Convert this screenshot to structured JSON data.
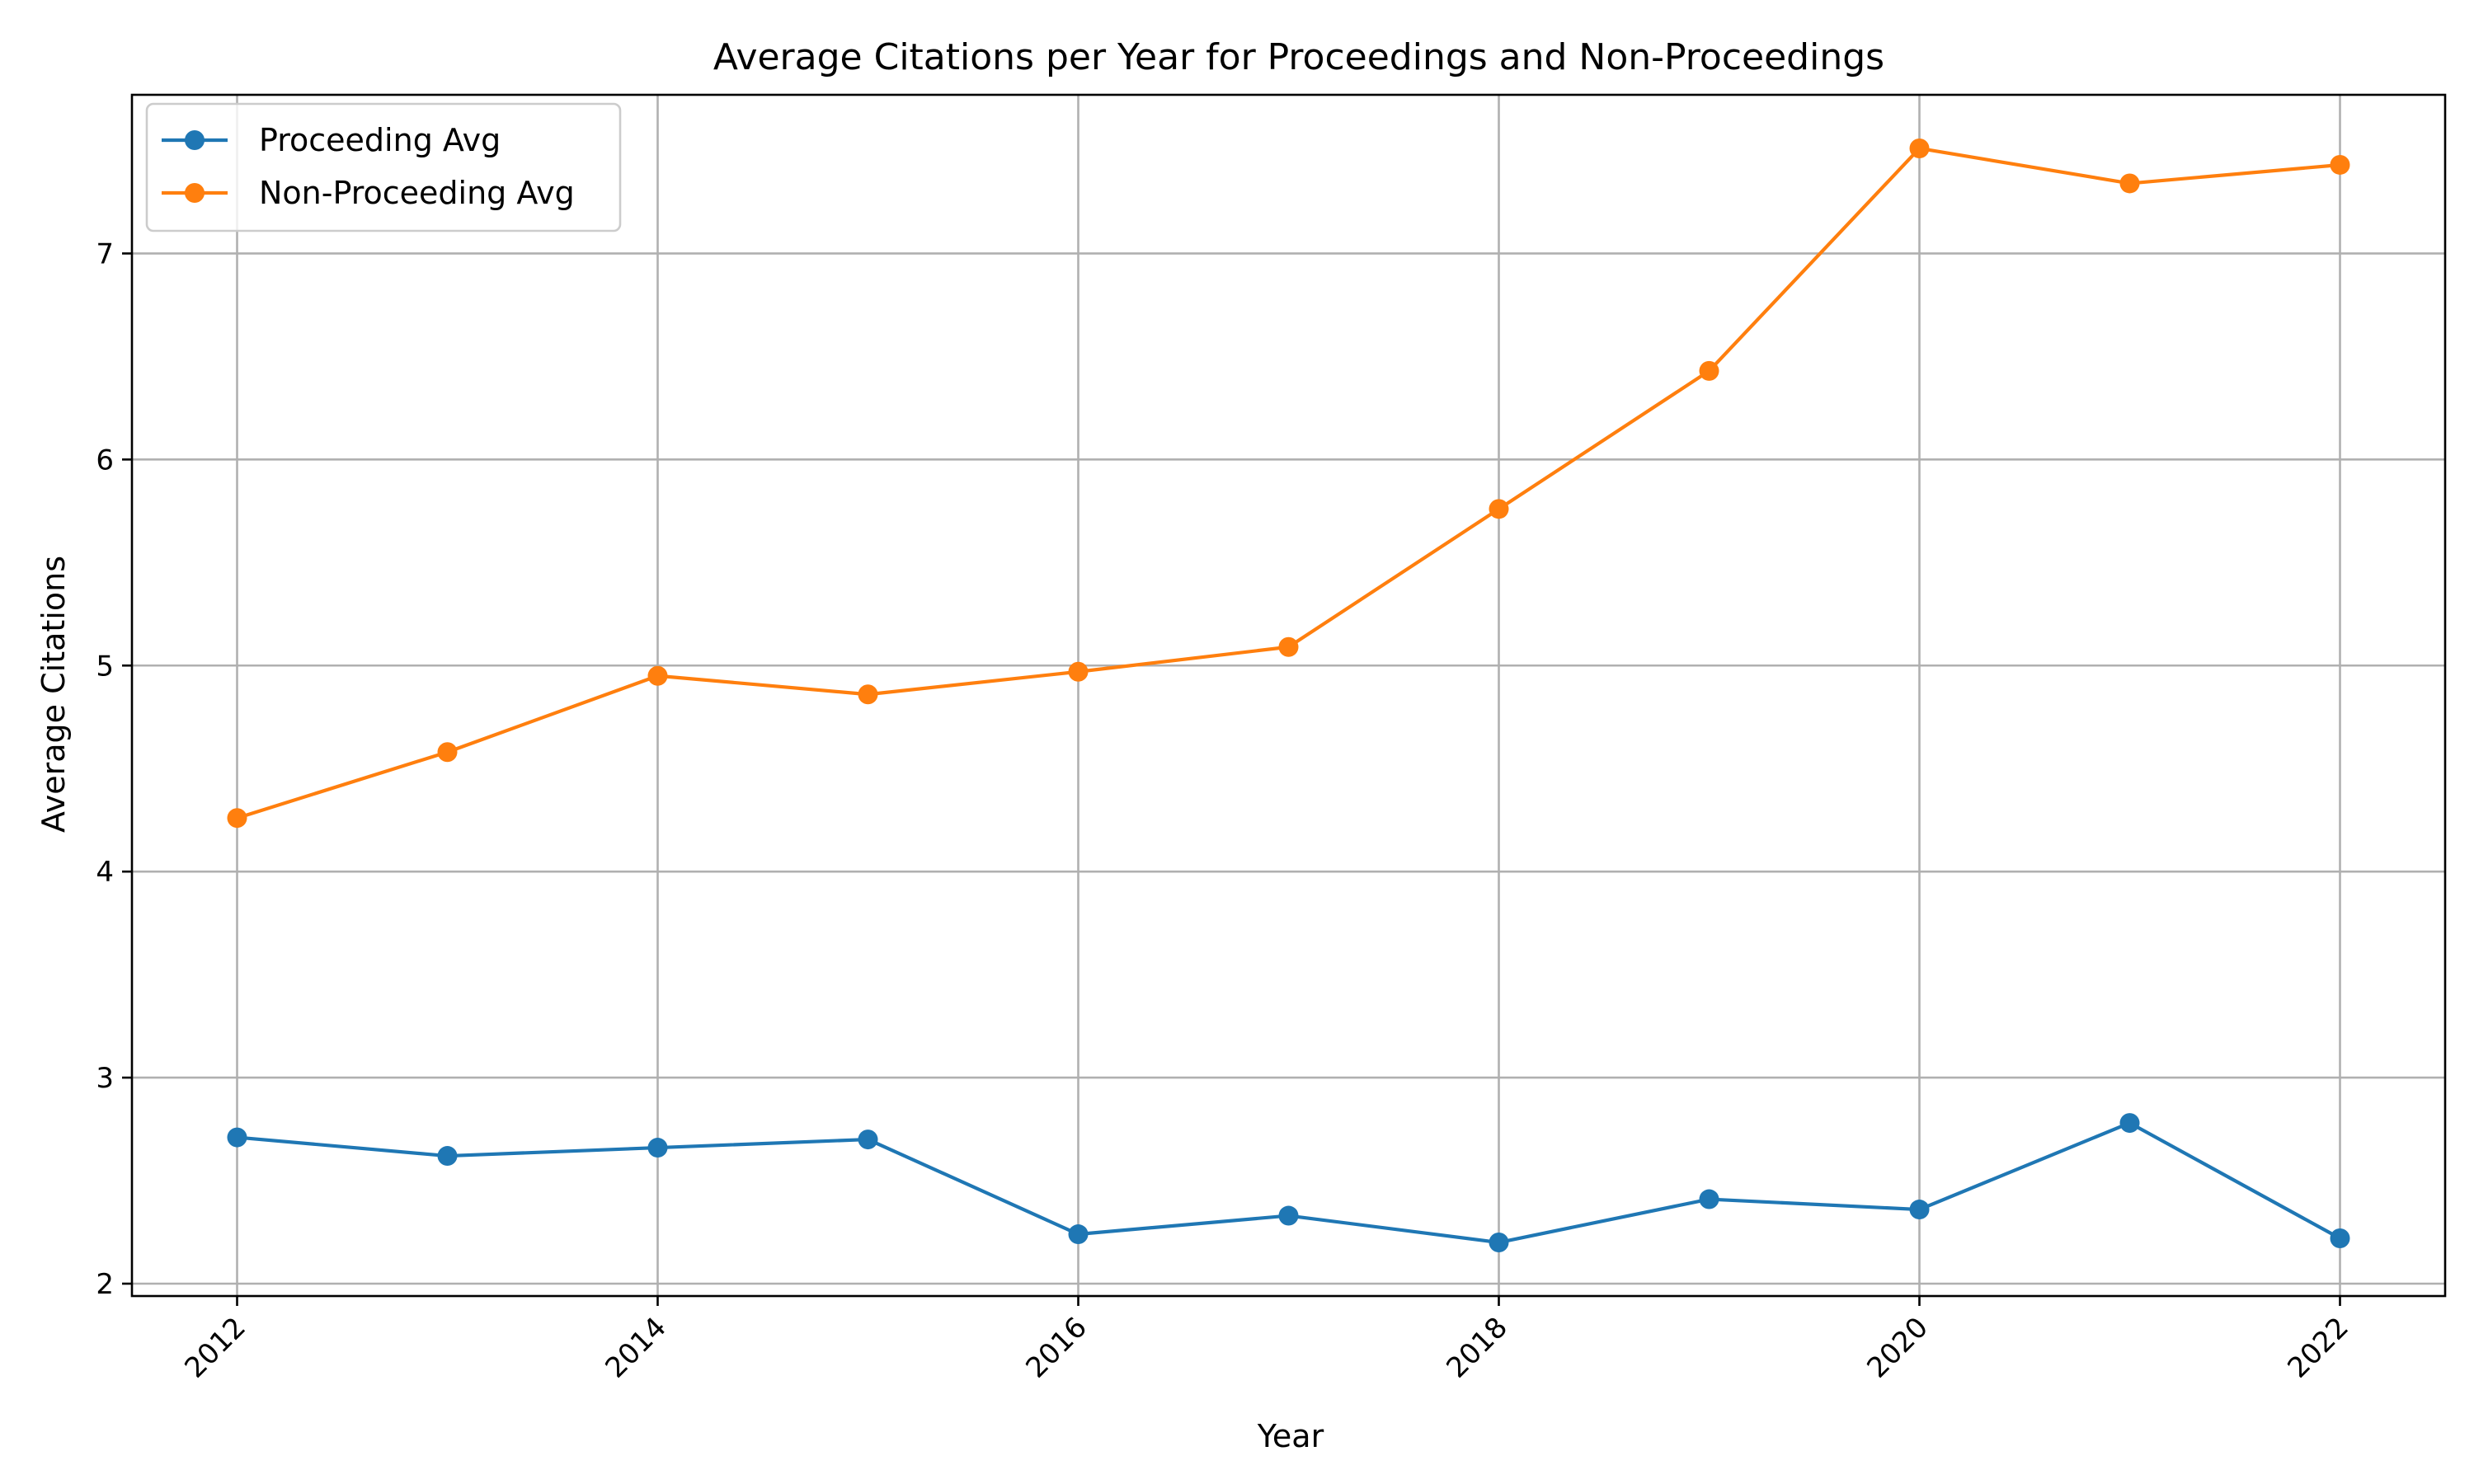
{
  "chart_data": {
    "type": "line",
    "title": "Average Citations per Year for Proceedings and Non-Proceedings",
    "xlabel": "Year",
    "ylabel": "Average Citations",
    "x": [
      2012,
      2013,
      2014,
      2015,
      2016,
      2017,
      2018,
      2019,
      2020,
      2021,
      2022
    ],
    "xticks": [
      "2012",
      "2014",
      "2016",
      "2018",
      "2020",
      "2022"
    ],
    "yticks": [
      "2",
      "3",
      "4",
      "5",
      "6",
      "7"
    ],
    "xlim": [
      2011.5,
      2022.5
    ],
    "ylim": [
      1.94,
      7.77
    ],
    "grid": true,
    "legend_position": "top-left",
    "series": [
      {
        "name": "Proceeding Avg",
        "color": "#1f77b4",
        "values": [
          2.71,
          2.62,
          2.66,
          2.7,
          2.24,
          2.33,
          2.2,
          2.41,
          2.36,
          2.78,
          2.22
        ]
      },
      {
        "name": "Non-Proceeding Avg",
        "color": "#ff7f0e",
        "values": [
          4.26,
          4.58,
          4.95,
          4.86,
          4.97,
          5.09,
          5.76,
          6.43,
          7.51,
          7.34,
          7.43
        ]
      }
    ]
  }
}
